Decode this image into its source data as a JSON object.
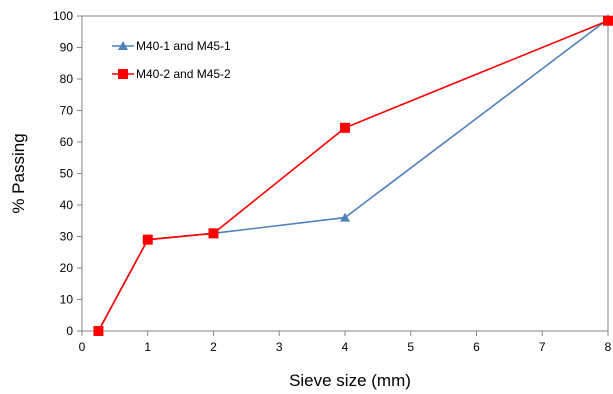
{
  "chart_data": {
    "type": "line",
    "title": "",
    "xlabel": "Sieve size (mm)",
    "ylabel": "% Passing",
    "xlim": [
      0,
      8
    ],
    "ylim": [
      0,
      100
    ],
    "xticks": [
      0,
      1,
      2,
      3,
      4,
      5,
      6,
      7,
      8
    ],
    "yticks": [
      0,
      10,
      20,
      30,
      40,
      50,
      60,
      70,
      80,
      90,
      100
    ],
    "grid": false,
    "legend_position": "top-left",
    "series": [
      {
        "name": "M40-1 and M45-1",
        "color": "#4F81BD",
        "marker": "triangle",
        "x": [
          0.25,
          1,
          2,
          4,
          8
        ],
        "y": [
          0,
          29,
          31,
          36,
          99
        ]
      },
      {
        "name": "M40-2 and M45-2",
        "color": "#FF0000",
        "marker": "square",
        "x": [
          0.25,
          1,
          2,
          4,
          8
        ],
        "y": [
          0,
          29,
          31,
          64.5,
          98.5
        ]
      }
    ]
  }
}
